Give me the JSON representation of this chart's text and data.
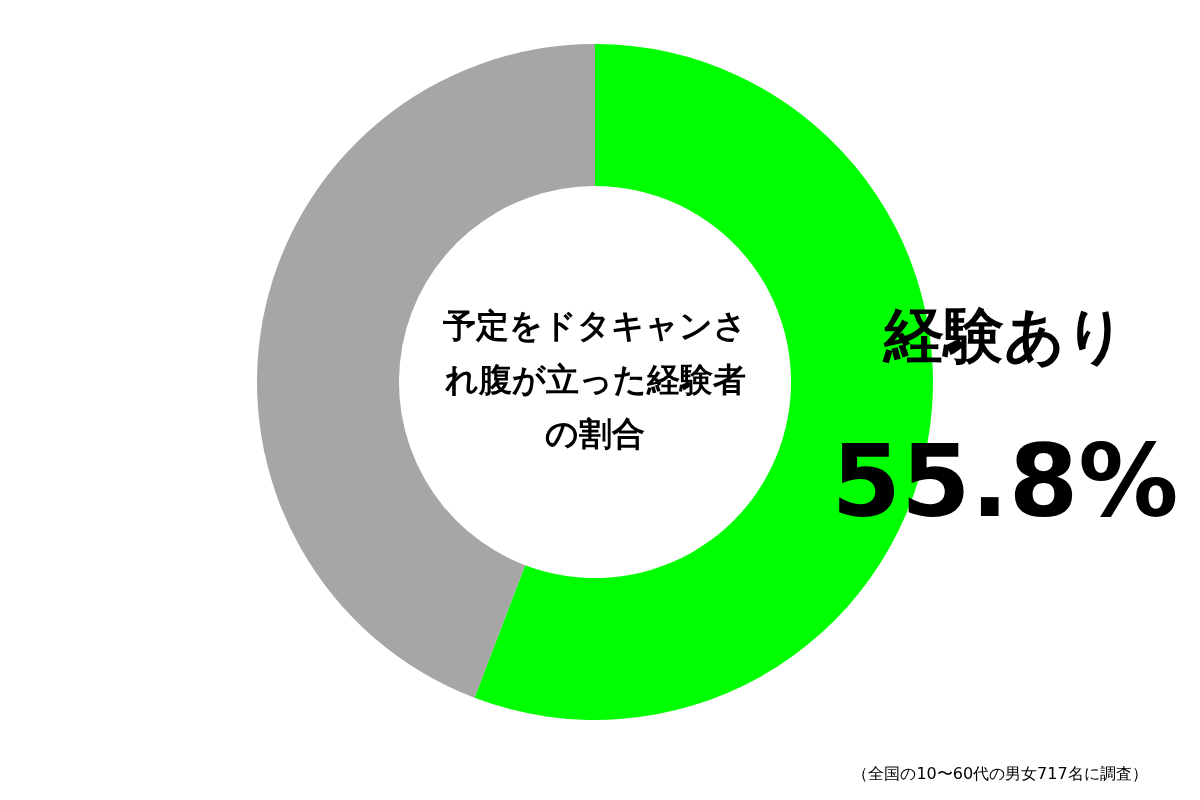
{
  "chart_data": {
    "type": "donut",
    "title": "予定をドタキャンされ腹が立った経験者の割合",
    "categories": [
      "経験あり",
      null
    ],
    "values": [
      55.8,
      44.2
    ],
    "colors": [
      "#00ff00",
      "#a6a6a6"
    ],
    "value_labels": [
      "55.8%",
      null
    ],
    "annotations": [
      "（全国の10〜60代の男女717名に調査）"
    ]
  }
}
